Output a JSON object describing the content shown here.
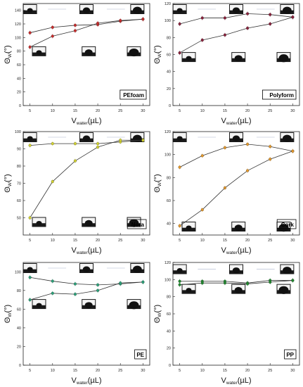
{
  "chart_data": [
    {
      "type": "line",
      "label": "PEfoam",
      "xlabel": "V",
      "xlabel_sub": "water",
      "xlabel_unit": "(µL)",
      "ylabel": "Θ",
      "ylabel_sub": "W",
      "ylabel_unit": "(°)",
      "x": [
        5,
        10,
        15,
        20,
        25,
        30
      ],
      "ylim": [
        0,
        150
      ],
      "yticks": [
        0,
        20,
        40,
        60,
        80,
        100,
        120,
        140
      ],
      "series": [
        {
          "values": [
            107,
            115,
            118,
            119,
            124,
            127
          ],
          "color": "#cc2a2a"
        },
        {
          "values": [
            86,
            102,
            110,
            121,
            125,
            127
          ],
          "color": "#cc2a2a"
        }
      ]
    },
    {
      "type": "line",
      "label": "Polyform",
      "xlabel": "V",
      "xlabel_sub": "water",
      "xlabel_unit": "(µL)",
      "ylabel": "Θ",
      "ylabel_sub": "W",
      "ylabel_unit": "(°)",
      "x": [
        5,
        10,
        15,
        20,
        25,
        30
      ],
      "ylim": [
        0,
        120
      ],
      "yticks": [
        0,
        20,
        40,
        60,
        80,
        100,
        120
      ],
      "series": [
        {
          "values": [
            96,
            103,
            103,
            108,
            107,
            104
          ],
          "color": "#8a1f3a"
        },
        {
          "values": [
            62,
            77,
            83,
            91,
            96,
            104
          ],
          "color": "#8a1f3a"
        }
      ]
    },
    {
      "type": "line",
      "label": "Nora",
      "xlabel": "V",
      "xlabel_sub": "water",
      "xlabel_unit": "(µL)",
      "ylabel": "Θ",
      "ylabel_sub": "W",
      "ylabel_unit": "(°)",
      "x": [
        5,
        10,
        15,
        20,
        25,
        30
      ],
      "ylim": [
        40,
        100
      ],
      "yticks": [
        50,
        60,
        70,
        80,
        90,
        100
      ],
      "series": [
        {
          "values": [
            92,
            93,
            93,
            93,
            94,
            95
          ],
          "color": "#d6d62e"
        },
        {
          "values": [
            50,
            71,
            83,
            91,
            95,
            95
          ],
          "color": "#d6d62e"
        }
      ]
    },
    {
      "type": "line",
      "label": "Cork",
      "xlabel": "V",
      "xlabel_sub": "water",
      "xlabel_unit": "(µL)",
      "ylabel": "Θ",
      "ylabel_sub": "W",
      "ylabel_unit": "(°)",
      "x": [
        5,
        10,
        15,
        20,
        25,
        30
      ],
      "ylim": [
        30,
        120
      ],
      "yticks": [
        40,
        60,
        80,
        100,
        120
      ],
      "series": [
        {
          "values": [
            89,
            99,
            106,
            109,
            107,
            103
          ],
          "color": "#e89a2a"
        },
        {
          "values": [
            38,
            52,
            71,
            86,
            96,
            103
          ],
          "color": "#e89a2a"
        }
      ]
    },
    {
      "type": "line",
      "label": "PE",
      "xlabel": "V",
      "xlabel_sub": "water",
      "xlabel_unit": "(µL)",
      "ylabel": "Θ",
      "ylabel_sub": "W",
      "ylabel_unit": "(°)",
      "x": [
        5,
        10,
        15,
        20,
        25,
        30
      ],
      "ylim": [
        0,
        110
      ],
      "yticks": [
        0,
        20,
        40,
        60,
        80,
        100
      ],
      "series": [
        {
          "values": [
            94,
            90,
            87,
            86,
            87,
            89
          ],
          "color": "#2aa37a"
        },
        {
          "values": [
            70,
            77,
            76,
            80,
            88,
            89
          ],
          "color": "#2aa37a"
        }
      ]
    },
    {
      "type": "line",
      "label": "PP",
      "xlabel": "V",
      "xlabel_sub": "water",
      "xlabel_unit": "(µL)",
      "ylabel": "Θ",
      "ylabel_sub": "W",
      "ylabel_unit": "(°)",
      "x": [
        5,
        10,
        15,
        20,
        25,
        30
      ],
      "ylim": [
        0,
        120
      ],
      "yticks": [
        0,
        20,
        40,
        60,
        80,
        100,
        120
      ],
      "series": [
        {
          "values": [
            98,
            98,
            98,
            96,
            99,
            99
          ],
          "color": "#1f8a2e"
        },
        {
          "values": [
            94,
            96,
            96,
            95,
            97,
            99
          ],
          "color": "#1f8a2e"
        }
      ]
    }
  ]
}
